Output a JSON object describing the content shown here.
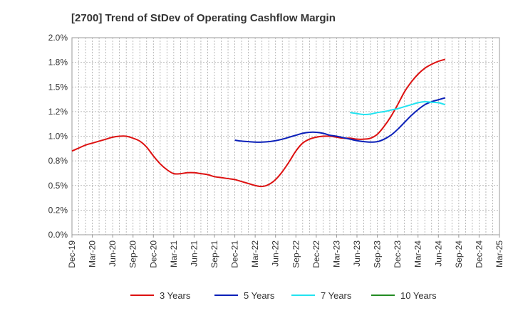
{
  "chart_data": {
    "type": "line",
    "title": "[2700]  Trend of StDev of Operating Cashflow Margin",
    "xlabel": "",
    "ylabel": "",
    "grid": true,
    "legend": "bottom",
    "x_ticks": [
      "Dec-19",
      "Mar-20",
      "Jun-20",
      "Sep-20",
      "Dec-20",
      "Mar-21",
      "Jun-21",
      "Sep-21",
      "Dec-21",
      "Mar-22",
      "Jun-22",
      "Sep-22",
      "Dec-22",
      "Mar-23",
      "Jun-23",
      "Sep-23",
      "Dec-23",
      "Mar-24",
      "Jun-24",
      "Sep-24",
      "Dec-24",
      "Mar-25"
    ],
    "y_ticks": [
      "0.0%",
      "0.2%",
      "0.5%",
      "0.8%",
      "1.0%",
      "1.2%",
      "1.5%",
      "1.8%",
      "2.0%"
    ],
    "ylim": [
      0,
      2.0
    ],
    "series": [
      {
        "name": "3 Years",
        "color": "#dd1111",
        "points": [
          [
            0,
            0.85
          ],
          [
            1,
            0.88
          ],
          [
            2,
            0.91
          ],
          [
            3,
            0.93
          ],
          [
            4,
            0.95
          ],
          [
            5,
            0.97
          ],
          [
            6,
            0.99
          ],
          [
            7,
            1.0
          ],
          [
            8,
            1.0
          ],
          [
            9,
            0.98
          ],
          [
            10,
            0.95
          ],
          [
            11,
            0.89
          ],
          [
            12,
            0.8
          ],
          [
            13,
            0.72
          ],
          [
            14,
            0.66
          ],
          [
            15,
            0.62
          ],
          [
            16,
            0.62
          ],
          [
            17,
            0.63
          ],
          [
            18,
            0.63
          ],
          [
            19,
            0.62
          ],
          [
            20,
            0.61
          ],
          [
            21,
            0.59
          ],
          [
            22,
            0.58
          ],
          [
            23,
            0.57
          ],
          [
            24,
            0.56
          ],
          [
            25,
            0.54
          ],
          [
            26,
            0.52
          ],
          [
            27,
            0.5
          ],
          [
            28,
            0.49
          ],
          [
            29,
            0.51
          ],
          [
            30,
            0.56
          ],
          [
            31,
            0.64
          ],
          [
            32,
            0.74
          ],
          [
            33,
            0.85
          ],
          [
            34,
            0.93
          ],
          [
            35,
            0.97
          ],
          [
            36,
            0.99
          ],
          [
            37,
            1.0
          ],
          [
            38,
            1.0
          ],
          [
            39,
            0.99
          ],
          [
            40,
            0.98
          ],
          [
            41,
            0.98
          ],
          [
            42,
            0.97
          ],
          [
            43,
            0.97
          ],
          [
            44,
            0.98
          ],
          [
            45,
            1.02
          ],
          [
            46,
            1.1
          ],
          [
            47,
            1.2
          ],
          [
            48,
            1.32
          ],
          [
            49,
            1.45
          ],
          [
            50,
            1.55
          ],
          [
            51,
            1.63
          ],
          [
            52,
            1.69
          ],
          [
            53,
            1.73
          ],
          [
            54,
            1.76
          ],
          [
            55,
            1.78
          ]
        ]
      },
      {
        "name": "5 Years",
        "color": "#0a1fb8",
        "points": [
          [
            24,
            0.96
          ],
          [
            25,
            0.95
          ],
          [
            26,
            0.945
          ],
          [
            27,
            0.94
          ],
          [
            28,
            0.94
          ],
          [
            29,
            0.945
          ],
          [
            30,
            0.955
          ],
          [
            31,
            0.97
          ],
          [
            32,
            0.99
          ],
          [
            33,
            1.01
          ],
          [
            34,
            1.03
          ],
          [
            35,
            1.04
          ],
          [
            36,
            1.04
          ],
          [
            37,
            1.03
          ],
          [
            38,
            1.01
          ],
          [
            39,
            1.0
          ],
          [
            40,
            0.985
          ],
          [
            41,
            0.97
          ],
          [
            42,
            0.955
          ],
          [
            43,
            0.945
          ],
          [
            44,
            0.94
          ],
          [
            45,
            0.945
          ],
          [
            46,
            0.97
          ],
          [
            47,
            1.01
          ],
          [
            48,
            1.07
          ],
          [
            49,
            1.14
          ],
          [
            50,
            1.21
          ],
          [
            51,
            1.27
          ],
          [
            52,
            1.32
          ],
          [
            53,
            1.35
          ],
          [
            54,
            1.37
          ],
          [
            55,
            1.39
          ]
        ]
      },
      {
        "name": "7 Years",
        "color": "#22e3f0",
        "points": [
          [
            41,
            1.24
          ],
          [
            42,
            1.23
          ],
          [
            43,
            1.22
          ],
          [
            44,
            1.225
          ],
          [
            45,
            1.24
          ],
          [
            46,
            1.25
          ],
          [
            47,
            1.265
          ],
          [
            48,
            1.28
          ],
          [
            49,
            1.3
          ],
          [
            50,
            1.32
          ],
          [
            51,
            1.34
          ],
          [
            52,
            1.35
          ],
          [
            53,
            1.345
          ],
          [
            54,
            1.34
          ],
          [
            55,
            1.32
          ]
        ]
      },
      {
        "name": "10 Years",
        "color": "#228b22",
        "points": []
      }
    ]
  }
}
